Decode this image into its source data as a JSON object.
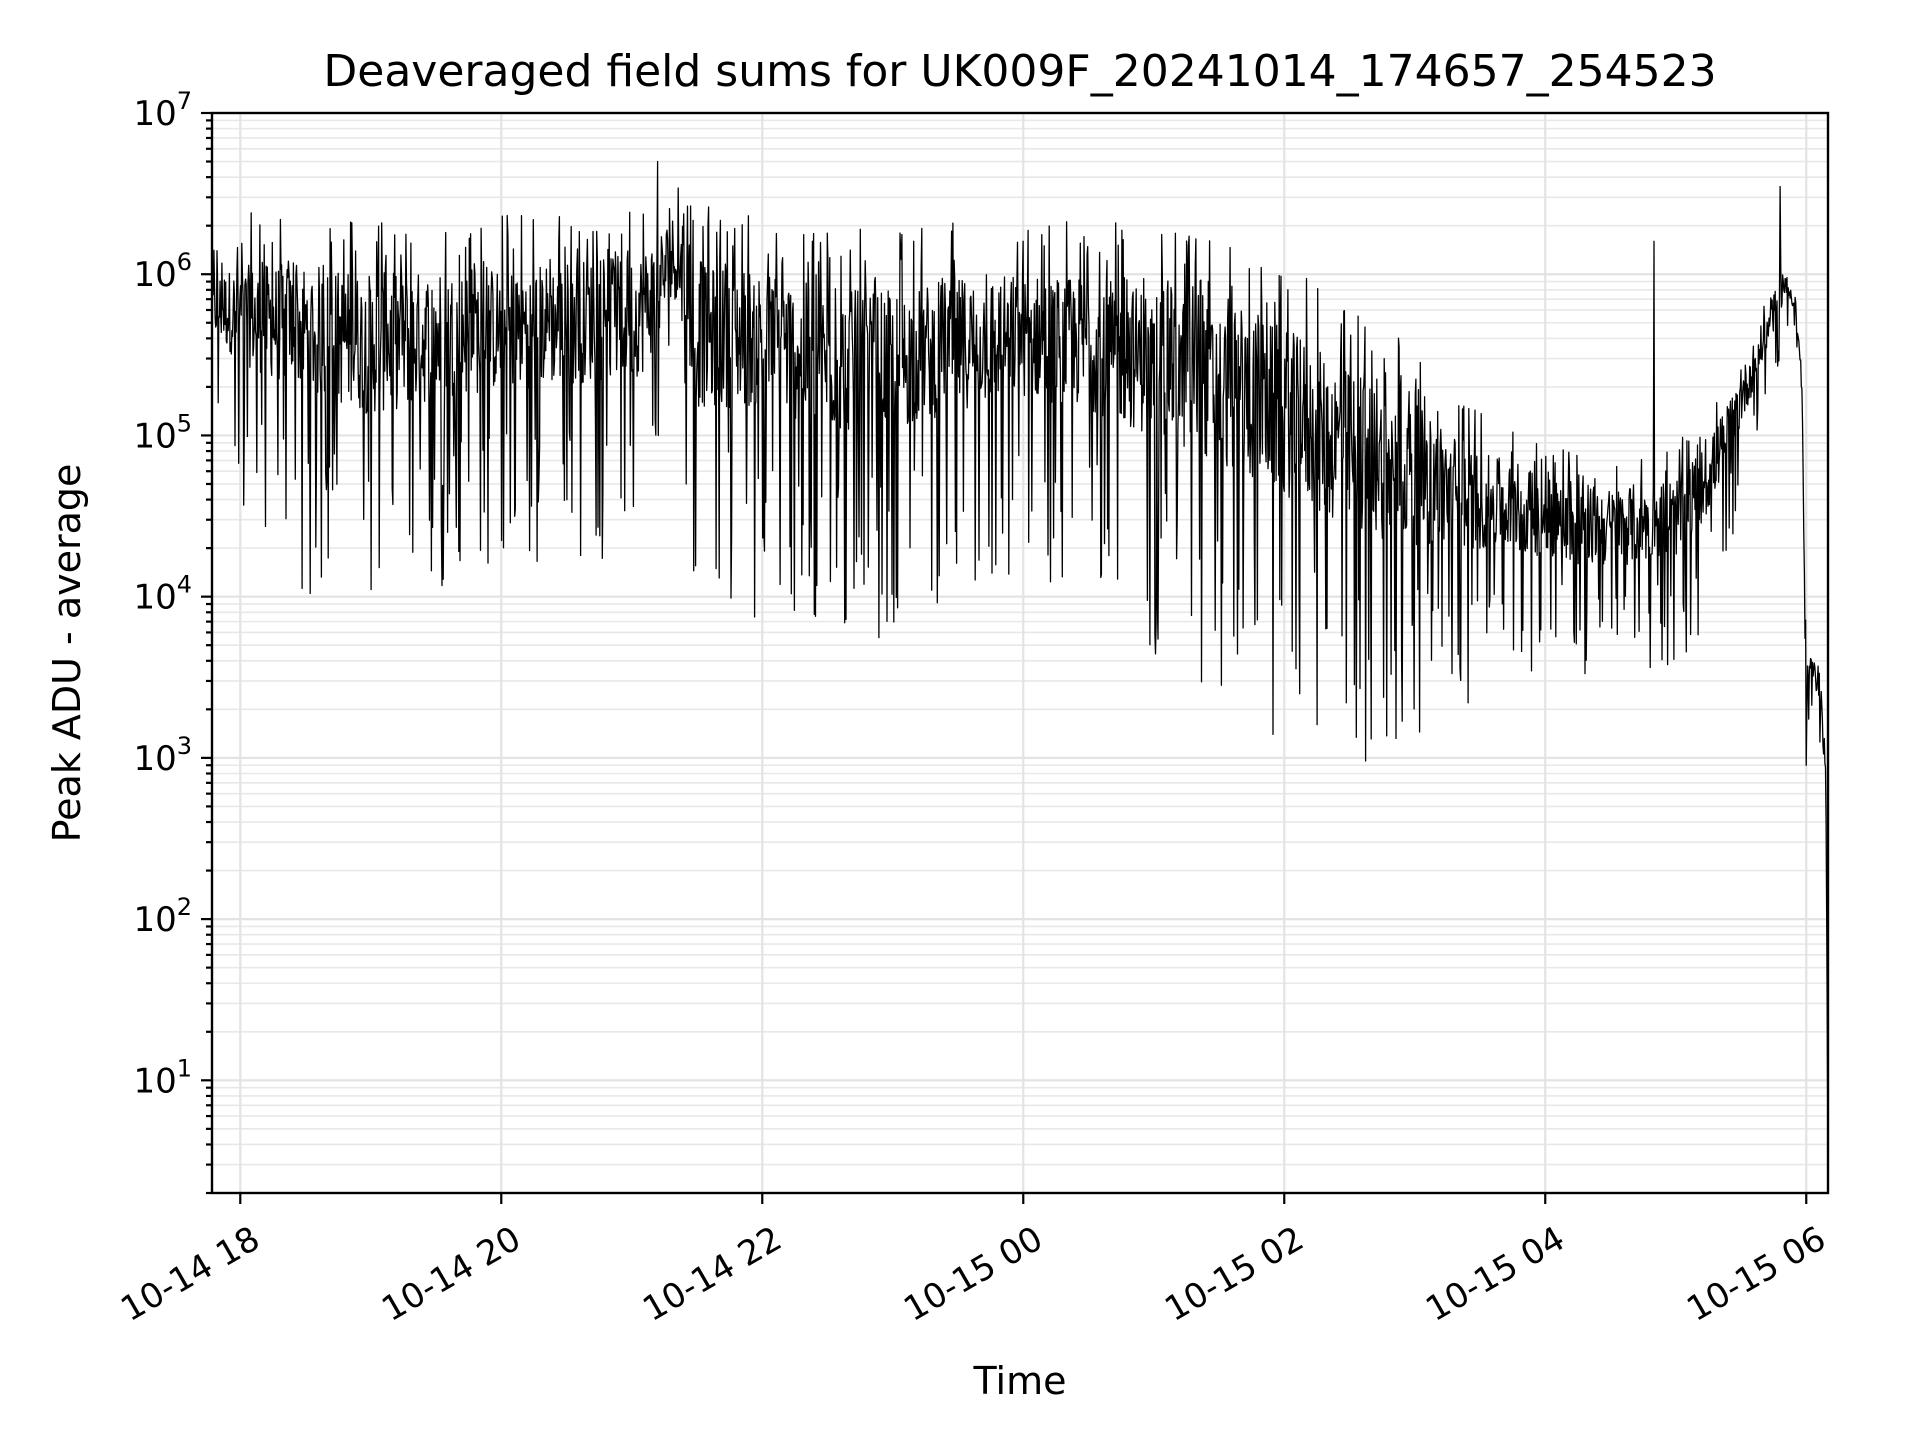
{
  "chart_data": {
    "type": "line",
    "title": "Deaveraged field sums for UK009F_20241014_174657_254523",
    "xlabel": "Time",
    "ylabel": "Peak ADU - average",
    "yscale": "log",
    "ylim": [
      2,
      10000000
    ],
    "xlim": [
      "2024-10-14 17:47",
      "2024-10-15 06:10"
    ],
    "grid": "major-and-minor",
    "line_color": "#000000",
    "x_ticks": [
      {
        "value": "2024-10-14 18:00",
        "label": "10-14 18"
      },
      {
        "value": "2024-10-14 20:00",
        "label": "10-14 20"
      },
      {
        "value": "2024-10-14 22:00",
        "label": "10-14 22"
      },
      {
        "value": "2024-10-15 00:00",
        "label": "10-15 00"
      },
      {
        "value": "2024-10-15 02:00",
        "label": "10-15 02"
      },
      {
        "value": "2024-10-15 04:00",
        "label": "10-15 04"
      },
      {
        "value": "2024-10-15 06:00",
        "label": "10-15 06"
      }
    ],
    "y_ticks": [
      {
        "value": 10,
        "base": "10",
        "exp": "1"
      },
      {
        "value": 100,
        "base": "10",
        "exp": "2"
      },
      {
        "value": 1000,
        "base": "10",
        "exp": "3"
      },
      {
        "value": 10000,
        "base": "10",
        "exp": "4"
      },
      {
        "value": 100000,
        "base": "10",
        "exp": "5"
      },
      {
        "value": 1000000,
        "base": "10",
        "exp": "6"
      },
      {
        "value": 10000000,
        "base": "10",
        "exp": "7"
      }
    ],
    "series": [
      {
        "x": [
          "2024-10-14 17:47",
          "2024-10-14 18:00",
          "2024-10-14 18:30",
          "2024-10-14 19:00",
          "2024-10-14 19:30",
          "2024-10-14 20:00",
          "2024-10-14 20:30",
          "2024-10-14 21:00",
          "2024-10-14 21:05",
          "2024-10-14 21:20",
          "2024-10-14 21:30",
          "2024-10-14 22:00",
          "2024-10-14 22:30",
          "2024-10-14 23:00",
          "2024-10-14 23:30",
          "2024-10-15 00:00",
          "2024-10-15 00:30",
          "2024-10-15 01:00",
          "2024-10-15 01:30",
          "2024-10-15 02:00",
          "2024-10-15 02:30",
          "2024-10-15 03:00",
          "2024-10-15 03:30",
          "2024-10-15 04:00",
          "2024-10-15 04:30",
          "2024-10-15 05:00",
          "2024-10-15 05:15",
          "2024-10-15 05:30",
          "2024-10-15 05:45",
          "2024-10-15 05:50",
          "2024-10-15 05:55",
          "2024-10-15 05:58",
          "2024-10-15 06:00",
          "2024-10-15 06:03",
          "2024-10-15 06:06",
          "2024-10-15 06:09",
          "2024-10-15 06:10"
        ],
        "base": [
          700000,
          650000,
          550000,
          450000,
          500000,
          550000,
          600000,
          650000,
          700000,
          1500000,
          500000,
          500000,
          350000,
          350000,
          450000,
          500000,
          450000,
          350000,
          250000,
          180000,
          100000,
          70000,
          45000,
          35000,
          30000,
          35000,
          60000,
          180000,
          600000,
          900000,
          700000,
          200000,
          3500,
          3500,
          3000,
          800,
          3
        ],
        "spread": [
          0.35,
          0.55,
          0.75,
          0.8,
          0.75,
          0.7,
          0.7,
          0.7,
          0.7,
          0.5,
          0.8,
          0.8,
          0.8,
          0.8,
          0.75,
          0.7,
          0.75,
          0.85,
          0.9,
          0.95,
          0.9,
          0.8,
          0.55,
          0.45,
          0.45,
          0.45,
          0.4,
          0.3,
          0.2,
          0.15,
          0.1,
          0.1,
          0.15,
          0.15,
          0.15,
          0.1,
          0.0
        ],
        "peaks": [
          {
            "x": "2024-10-14 18:05",
            "value": 2400000
          },
          {
            "x": "2024-10-14 21:12",
            "value": 5000000
          },
          {
            "x": "2024-10-14 21:35",
            "value": 2000000
          },
          {
            "x": "2024-10-14 22:30",
            "value": 1800000
          },
          {
            "x": "2024-10-14 22:45",
            "value": 1900000
          },
          {
            "x": "2024-10-15 00:00",
            "value": 1600000
          },
          {
            "x": "2024-10-15 04:50",
            "value": 1600000
          },
          {
            "x": "2024-10-15 05:48",
            "value": 3500000
          }
        ],
        "dips": [
          {
            "x": "2024-10-14 18:20",
            "value": 95000
          },
          {
            "x": "2024-10-14 18:40",
            "value": 55000
          },
          {
            "x": "2024-10-14 19:10",
            "value": 47000
          },
          {
            "x": "2024-10-14 19:45",
            "value": 52000
          },
          {
            "x": "2024-10-14 21:25",
            "value": 50000
          },
          {
            "x": "2024-10-14 22:35",
            "value": 48000
          },
          {
            "x": "2024-10-14 23:55",
            "value": 40000
          },
          {
            "x": "2024-10-15 02:00",
            "value": 45000
          },
          {
            "x": "2024-10-15 03:30",
            "value": 20000
          },
          {
            "x": "2024-10-15 04:15",
            "value": 16000
          },
          {
            "x": "2024-10-15 06:00",
            "value": 900
          }
        ]
      }
    ]
  }
}
